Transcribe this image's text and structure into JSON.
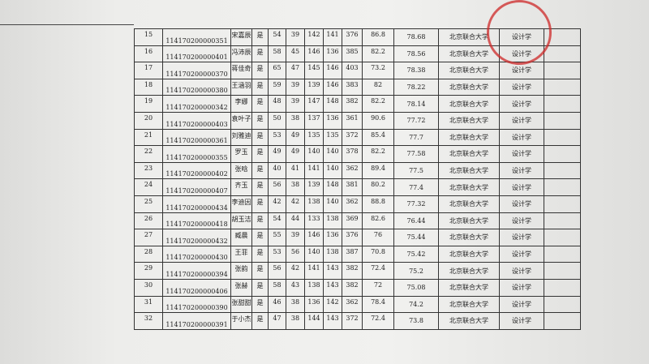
{
  "table": {
    "rows": [
      [
        "15",
        "114170200000351",
        "宋嘉辰",
        "是",
        54,
        39,
        142,
        141,
        376,
        86.8,
        78.68,
        "北京联合大学",
        "设计学"
      ],
      [
        "16",
        "114170200000401",
        "冯沛辰",
        "是",
        58,
        45,
        146,
        136,
        385,
        82.2,
        78.56,
        "北京联合大学",
        "设计学"
      ],
      [
        "17",
        "114170200000370",
        "蒋佳奇",
        "是",
        65,
        47,
        145,
        146,
        403,
        73.2,
        78.38,
        "北京联合大学",
        "设计学"
      ],
      [
        "18",
        "114170200000380",
        "王涵羽",
        "是",
        59,
        39,
        139,
        146,
        383,
        82,
        78.22,
        "北京联合大学",
        "设计学"
      ],
      [
        "19",
        "114170200000342",
        "李娜",
        "是",
        48,
        39,
        147,
        148,
        382,
        82.2,
        78.14,
        "北京联合大学",
        "设计学"
      ],
      [
        "20",
        "114170200000403",
        "袁叶子",
        "是",
        50,
        38,
        137,
        136,
        361,
        90.6,
        77.72,
        "北京联合大学",
        "设计学"
      ],
      [
        "21",
        "114170200000361",
        "刘雅迪",
        "是",
        53,
        49,
        135,
        135,
        372,
        85.4,
        77.7,
        "北京联合大学",
        "设计学"
      ],
      [
        "22",
        "114170200000355",
        "罗玉",
        "是",
        49,
        49,
        140,
        140,
        378,
        82.2,
        77.58,
        "北京联合大学",
        "设计学"
      ],
      [
        "23",
        "114170200000402",
        "张晗",
        "是",
        40,
        41,
        141,
        140,
        362,
        89.4,
        77.5,
        "北京联合大学",
        "设计学"
      ],
      [
        "24",
        "114170200000407",
        "齐玉",
        "是",
        56,
        38,
        139,
        148,
        381,
        80.2,
        77.4,
        "北京联合大学",
        "设计学"
      ],
      [
        "25",
        "114170200000434",
        "李迪因",
        "是",
        42,
        42,
        138,
        140,
        362,
        88.8,
        77.32,
        "北京联合大学",
        "设计学"
      ],
      [
        "26",
        "114170200000418",
        "胡玉洁",
        "是",
        54,
        44,
        133,
        138,
        369,
        82.6,
        76.44,
        "北京联合大学",
        "设计学"
      ],
      [
        "27",
        "114170200000432",
        "臧晨",
        "是",
        55,
        39,
        146,
        136,
        376,
        76,
        75.44,
        "北京联合大学",
        "设计学"
      ],
      [
        "28",
        "114170200000430",
        "王菲",
        "是",
        53,
        56,
        140,
        138,
        387,
        70.8,
        75.42,
        "北京联合大学",
        "设计学"
      ],
      [
        "29",
        "114170200000394",
        "张韵",
        "是",
        56,
        42,
        141,
        143,
        382,
        72.4,
        75.2,
        "北京联合大学",
        "设计学"
      ],
      [
        "30",
        "114170200000406",
        "张赫",
        "是",
        58,
        43,
        138,
        143,
        382,
        72,
        75.08,
        "北京联合大学",
        "设计学"
      ],
      [
        "31",
        "114170200000390",
        "张甜甜",
        "是",
        46,
        38,
        136,
        142,
        362,
        78.4,
        74.2,
        "北京联合大学",
        "设计学"
      ],
      [
        "32",
        "114170200000391",
        "于小杰",
        "是",
        47,
        38,
        144,
        143,
        372,
        72.4,
        73.8,
        "北京联合大学",
        "设计学"
      ]
    ]
  }
}
